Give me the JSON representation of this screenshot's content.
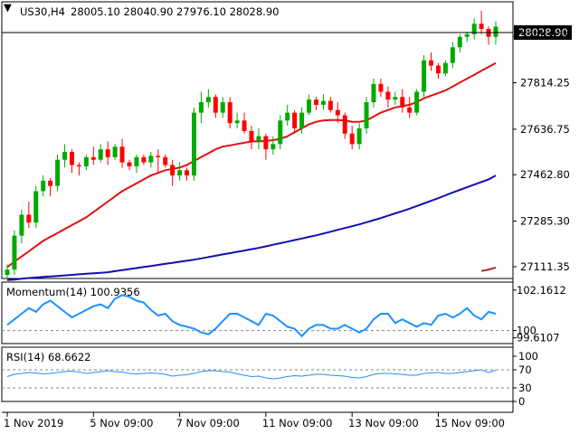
{
  "header": {
    "symbol": "US30,H4",
    "ohlc": "28005.10 28040.90 27976.10 28028.90"
  },
  "colors": {
    "bull": "#00aa00",
    "bear": "#ff0000",
    "ma_fast": "#dd1111",
    "ma_slow": "#1010b0",
    "ma_long": "#aa2222",
    "momentum": "#1e90ff",
    "rsi": "#1e90ff",
    "grid_dash": "#888888",
    "border": "#000000"
  },
  "price_panel": {
    "price_label": "28028.90",
    "ticks": [
      "27991.75",
      "27814.25",
      "27636.75",
      "27462.80",
      "27285.30",
      "27111.35"
    ]
  },
  "momentum_panel": {
    "label": "Momentum(14) 100.9356",
    "ticks": [
      "102.1612",
      "100",
      "99.6107"
    ]
  },
  "rsi_panel": {
    "label": "RSI(14) 68.6622",
    "ticks": [
      "100",
      "70",
      "30",
      "0"
    ]
  },
  "x_axis": {
    "labels": [
      "1 Nov 2019",
      "5 Nov 09:00",
      "7 Nov 09:00",
      "11 Nov 09:00",
      "13 Nov 09:00",
      "15 Nov 09:00"
    ]
  },
  "chart_data": [
    {
      "type": "candlestick",
      "title": "US30,H4",
      "y_ticks": [
        27991.75,
        27814.25,
        27636.75,
        27462.8,
        27285.3,
        27111.35
      ],
      "ylim": [
        27080,
        28110
      ],
      "last_price": 28028.9,
      "candles": [
        [
          27080,
          27120,
          27060,
          27100
        ],
        [
          27100,
          27250,
          27080,
          27230
        ],
        [
          27230,
          27330,
          27200,
          27310
        ],
        [
          27310,
          27360,
          27260,
          27280
        ],
        [
          27280,
          27420,
          27260,
          27400
        ],
        [
          27400,
          27460,
          27380,
          27440
        ],
        [
          27440,
          27450,
          27380,
          27420
        ],
        [
          27420,
          27540,
          27400,
          27520
        ],
        [
          27520,
          27580,
          27490,
          27550
        ],
        [
          27550,
          27560,
          27470,
          27500
        ],
        [
          27500,
          27510,
          27460,
          27495
        ],
        [
          27495,
          27540,
          27480,
          27530
        ],
        [
          27530,
          27570,
          27500,
          27520
        ],
        [
          27520,
          27580,
          27510,
          27560
        ],
        [
          27560,
          27590,
          27500,
          27530
        ],
        [
          27530,
          27580,
          27520,
          27570
        ],
        [
          27570,
          27600,
          27490,
          27510
        ],
        [
          27510,
          27520,
          27480,
          27495
        ],
        [
          27495,
          27540,
          27470,
          27530
        ],
        [
          27530,
          27540,
          27500,
          27510
        ],
        [
          27510,
          27550,
          27490,
          27535
        ],
        [
          27535,
          27560,
          27470,
          27530
        ],
        [
          27530,
          27540,
          27490,
          27500
        ],
        [
          27500,
          27520,
          27420,
          27460
        ],
        [
          27460,
          27510,
          27440,
          27480
        ],
        [
          27480,
          27490,
          27440,
          27460
        ],
        [
          27460,
          27720,
          27440,
          27700
        ],
        [
          27700,
          27780,
          27660,
          27740
        ],
        [
          27740,
          27790,
          27720,
          27760
        ],
        [
          27760,
          27770,
          27680,
          27700
        ],
        [
          27700,
          27760,
          27680,
          27740
        ],
        [
          27740,
          27760,
          27640,
          27660
        ],
        [
          27660,
          27700,
          27640,
          27670
        ],
        [
          27670,
          27700,
          27620,
          27630
        ],
        [
          27630,
          27650,
          27560,
          27590
        ],
        [
          27590,
          27640,
          27560,
          27610
        ],
        [
          27610,
          27620,
          27520,
          27560
        ],
        [
          27560,
          27610,
          27540,
          27580
        ],
        [
          27580,
          27690,
          27560,
          27670
        ],
        [
          27670,
          27730,
          27650,
          27700
        ],
        [
          27700,
          27710,
          27620,
          27640
        ],
        [
          27640,
          27720,
          27620,
          27700
        ],
        [
          27700,
          27770,
          27690,
          27750
        ],
        [
          27750,
          27760,
          27710,
          27730
        ],
        [
          27730,
          27770,
          27710,
          27745
        ],
        [
          27745,
          27760,
          27700,
          27710
        ],
        [
          27710,
          27740,
          27660,
          27690
        ],
        [
          27690,
          27700,
          27600,
          27620
        ],
        [
          27620,
          27650,
          27560,
          27580
        ],
        [
          27580,
          27660,
          27560,
          27640
        ],
        [
          27640,
          27760,
          27620,
          27740
        ],
        [
          27740,
          27830,
          27720,
          27810
        ],
        [
          27810,
          27830,
          27760,
          27780
        ],
        [
          27780,
          27800,
          27720,
          27750
        ],
        [
          27750,
          27780,
          27730,
          27760
        ],
        [
          27760,
          27790,
          27700,
          27720
        ],
        [
          27720,
          27760,
          27680,
          27700
        ],
        [
          27700,
          27790,
          27690,
          27780
        ],
        [
          27780,
          27920,
          27760,
          27900
        ],
        [
          27900,
          27930,
          27860,
          27880
        ],
        [
          27880,
          27890,
          27830,
          27850
        ],
        [
          27850,
          27900,
          27840,
          27890
        ],
        [
          27890,
          27970,
          27870,
          27950
        ],
        [
          27950,
          28000,
          27930,
          27990
        ],
        [
          27990,
          28010,
          27970,
          28000
        ],
        [
          28000,
          28060,
          27980,
          28040
        ],
        [
          28040,
          28090,
          28000,
          28020
        ],
        [
          28020,
          28030,
          27960,
          27990
        ],
        [
          27990,
          28050,
          27960,
          28028.9
        ]
      ],
      "ma_fast": [
        27110,
        27130,
        27150,
        27170,
        27190,
        27210,
        27225,
        27240,
        27255,
        27270,
        27285,
        27300,
        27320,
        27340,
        27360,
        27380,
        27400,
        27415,
        27430,
        27445,
        27460,
        27470,
        27480,
        27485,
        27490,
        27500,
        27515,
        27530,
        27545,
        27560,
        27570,
        27575,
        27580,
        27585,
        27590,
        27590,
        27592,
        27595,
        27600,
        27610,
        27625,
        27640,
        27655,
        27665,
        27670,
        27672,
        27672,
        27670,
        27665,
        27665,
        27670,
        27685,
        27700,
        27710,
        27720,
        27725,
        27730,
        27740,
        27755,
        27765,
        27775,
        27785,
        27800,
        27815,
        27830,
        27845,
        27860,
        27875,
        27890
      ],
      "ma_slow": [
        27060,
        27062,
        27065,
        27068,
        27070,
        27072,
        27074,
        27076,
        27078,
        27080,
        27082,
        27084,
        27086,
        27088,
        27090,
        27094,
        27098,
        27102,
        27106,
        27110,
        27114,
        27118,
        27122,
        27126,
        27130,
        27134,
        27138,
        27143,
        27148,
        27153,
        27158,
        27163,
        27168,
        27173,
        27178,
        27183,
        27189,
        27195,
        27201,
        27207,
        27213,
        27219,
        27225,
        27231,
        27238,
        27245,
        27252,
        27259,
        27266,
        27273,
        27281,
        27289,
        27297,
        27306,
        27315,
        27324,
        27333,
        27343,
        27353,
        27363,
        27373,
        27384,
        27395,
        27405,
        27415,
        27425,
        27435,
        27445,
        27460
      ],
      "ma_long": [
        27095,
        27100,
        27108
      ]
    },
    {
      "type": "line",
      "title": "Momentum(14) 100.9356",
      "y_ticks": [
        102.1612,
        100,
        99.6107
      ],
      "ylim": [
        99.4,
        102.3
      ],
      "reference_level": 100,
      "series": [
        {
          "values": [
            100.3,
            100.6,
            100.9,
            101.2,
            101.0,
            101.4,
            101.6,
            101.3,
            101.0,
            100.7,
            100.9,
            101.1,
            101.3,
            101.4,
            101.2,
            101.7,
            101.9,
            101.8,
            101.6,
            101.5,
            101.1,
            100.8,
            100.9,
            100.5,
            100.3,
            100.2,
            100.1,
            99.9,
            99.8,
            100.1,
            100.5,
            100.9,
            100.9,
            100.7,
            100.5,
            100.3,
            100.9,
            100.8,
            100.5,
            100.2,
            100.1,
            99.7,
            100.1,
            100.3,
            100.3,
            100.1,
            100.1,
            100.3,
            100.1,
            99.9,
            100.1,
            100.6,
            100.9,
            100.9,
            100.4,
            100.6,
            100.4,
            100.2,
            100.4,
            100.3,
            100.8,
            100.9,
            100.7,
            100.9,
            101.2,
            100.8,
            100.6,
            101.0,
            100.9
          ]
        }
      ]
    },
    {
      "type": "line",
      "title": "RSI(14) 68.6622",
      "y_ticks": [
        100,
        70,
        30,
        0
      ],
      "ylim": [
        0,
        100
      ],
      "levels": [
        70,
        30
      ],
      "series": [
        {
          "values": [
            55,
            60,
            62,
            64,
            63,
            61,
            62,
            64,
            66,
            67,
            65,
            62,
            64,
            66,
            68,
            66,
            65,
            62,
            61,
            62,
            63,
            62,
            60,
            56,
            58,
            59,
            62,
            66,
            68,
            68,
            66,
            65,
            61,
            58,
            55,
            56,
            52,
            50,
            52,
            55,
            57,
            56,
            58,
            60,
            60,
            58,
            57,
            56,
            53,
            52,
            55,
            60,
            62,
            62,
            61,
            60,
            58,
            58,
            62,
            63,
            64,
            62,
            62,
            64,
            66,
            68,
            70,
            64,
            69
          ]
        }
      ]
    }
  ]
}
